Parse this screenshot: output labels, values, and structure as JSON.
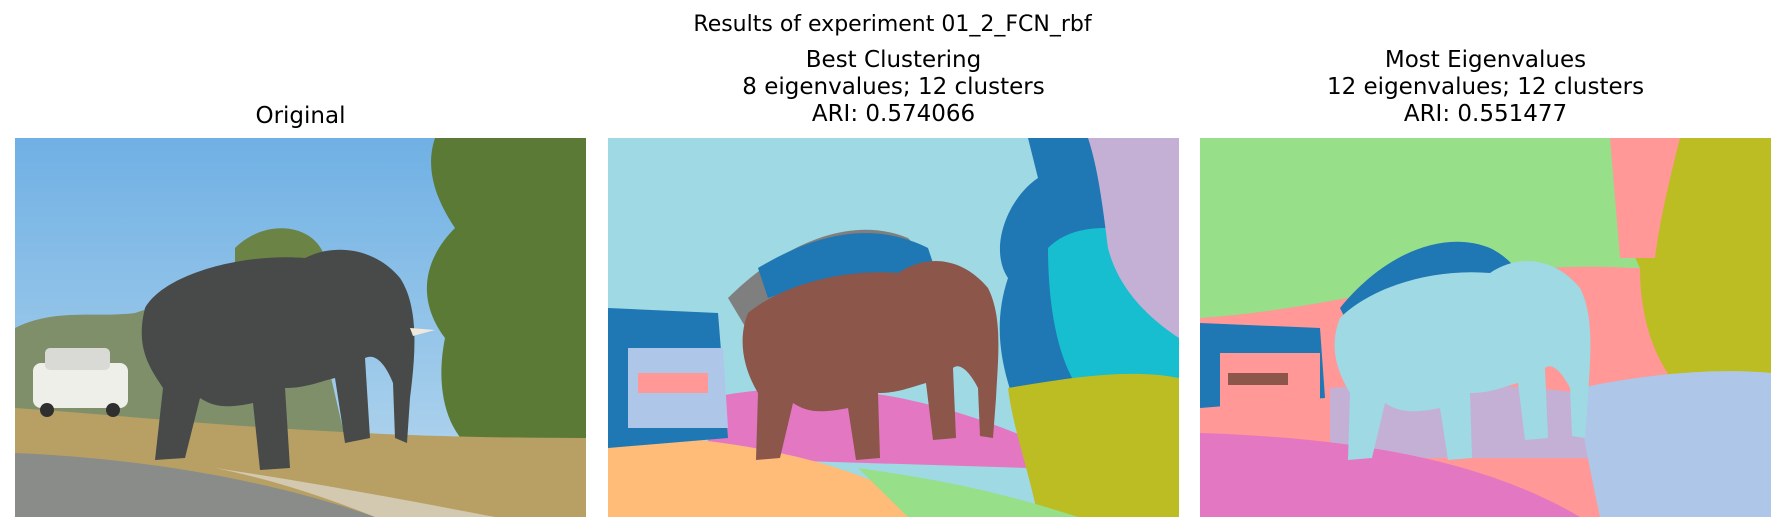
{
  "figure": {
    "suptitle": "Results of experiment 01_2_FCN_rbf"
  },
  "panels": [
    {
      "title_lines": [
        "Original"
      ]
    },
    {
      "title_lines": [
        "Best Clustering",
        "8 eigenvalues; 12 clusters",
        "ARI: 0.574066"
      ]
    },
    {
      "title_lines": [
        "Most Eigenvalues",
        "12 eigenvalues; 12 clusters",
        "ARI: 0.551477"
      ]
    }
  ],
  "colors": {
    "sky_photo": "#7fb8e6",
    "elephant_photo": "#4a4d4c",
    "road_photo": "#8e8f8c",
    "grass_photo": "#b9a66a",
    "trees_photo": "#5d7a3a",
    "car_photo": "#f2f2ee",
    "c_lightblue": "#9fd9e3",
    "c_brown": "#8c564b",
    "c_gray": "#7f7f7f",
    "c_blue": "#1f77b4",
    "c_cyan": "#17becf",
    "c_lavender": "#c5b0d5",
    "c_pink": "#e377c2",
    "c_olive": "#bcbd22",
    "c_orange": "#ffbb78",
    "c_lightgreen": "#98df8a",
    "c_salmon": "#ff9896",
    "c_paleblue": "#aec7e8"
  }
}
